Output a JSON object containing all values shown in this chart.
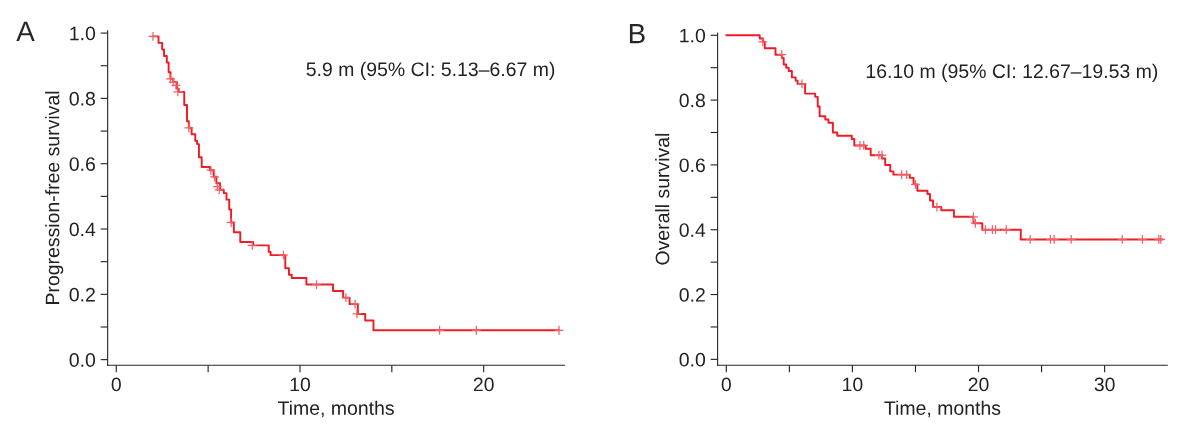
{
  "chart_data": [
    {
      "type": "step",
      "title": "A",
      "xlabel": "Time, months",
      "ylabel": "Progression-free survival",
      "annotations": [
        "5.9 m (95% CI: 5.13–6.67 m)"
      ],
      "xlim": [
        -0.47,
        24.4
      ],
      "xticks": [
        0,
        {
          "value": 5,
          "label": null
        },
        10,
        {
          "value": 15,
          "label": null
        },
        20
      ],
      "ylim": [
        -0.017,
        1.007
      ],
      "yticks": [
        {
          "value": 0,
          "label": "0.0"
        },
        {
          "value": 0.1,
          "label": null
        },
        {
          "value": 0.2,
          "label": "0.2"
        },
        {
          "value": 0.3,
          "label": null
        },
        {
          "value": 0.4,
          "label": "0.4"
        },
        {
          "value": 0.5,
          "label": null
        },
        {
          "value": 0.6,
          "label": "0.6"
        },
        {
          "value": 0.7,
          "label": null
        },
        {
          "value": 0.8,
          "label": "0.8"
        },
        {
          "value": 0.9,
          "label": null
        },
        {
          "value": 1,
          "label": "1.0"
        }
      ],
      "series": [
        {
          "color": "#ee1c25",
          "x": [
            2.0,
            2.3,
            2.5,
            2.6,
            2.75,
            2.85,
            2.95,
            3.1,
            3.3,
            3.4,
            3.7,
            3.85,
            3.95,
            4.1,
            4.3,
            4.4,
            4.5,
            4.65,
            5.1,
            5.3,
            5.45,
            5.65,
            5.85,
            6.0,
            6.15,
            6.25,
            6.4,
            6.75,
            7.45,
            8.3,
            8.4,
            9.2,
            9.4,
            9.55,
            10.35,
            11.8,
            12.35,
            12.7,
            13.15,
            13.55,
            14.0,
            24.1
          ],
          "values": [
            0.99,
            0.97,
            0.95,
            0.93,
            0.91,
            0.88,
            0.86,
            0.85,
            0.83,
            0.82,
            0.78,
            0.73,
            0.71,
            0.69,
            0.67,
            0.66,
            0.62,
            0.59,
            0.58,
            0.56,
            0.54,
            0.52,
            0.51,
            0.49,
            0.46,
            0.42,
            0.39,
            0.36,
            0.35,
            0.33,
            0.32,
            0.28,
            0.26,
            0.25,
            0.23,
            0.21,
            0.19,
            0.17,
            0.14,
            0.12,
            0.09,
            0.09
          ]
        },
        {
          "type": "scatter",
          "marker": "cross",
          "color": "#f06068",
          "x": [
            2.0,
            2.95,
            3.1,
            3.25,
            3.35,
            3.95,
            5.15,
            5.35,
            5.5,
            5.6,
            6.25,
            7.4,
            9.1,
            10.9,
            12.5,
            13.0,
            13.1,
            17.6,
            19.6,
            24.1
          ],
          "values": [
            0.99,
            0.86,
            0.85,
            0.84,
            0.82,
            0.71,
            0.58,
            0.56,
            0.53,
            0.52,
            0.42,
            0.35,
            0.32,
            0.23,
            0.19,
            0.17,
            0.14,
            0.09,
            0.09,
            0.09
          ]
        }
      ]
    },
    {
      "type": "step",
      "title": "B",
      "xlabel": "Time, months",
      "ylabel": "Overall survival",
      "annotations": [
        "16.10 m (95% CI: 12.67–19.53 m)"
      ],
      "xlim": [
        -0.69,
        34.97
      ],
      "xticks": [
        0,
        {
          "value": 5,
          "label": null
        },
        10,
        {
          "value": 15,
          "label": null
        },
        20,
        {
          "value": 25,
          "label": null
        },
        30
      ],
      "ylim": [
        -0.018,
        1.007
      ],
      "yticks": [
        {
          "value": 0,
          "label": "0.0"
        },
        {
          "value": 0.1,
          "label": null
        },
        {
          "value": 0.2,
          "label": "0.2"
        },
        {
          "value": 0.3,
          "label": null
        },
        {
          "value": 0.4,
          "label": "0.4"
        },
        {
          "value": 0.5,
          "label": null
        },
        {
          "value": 0.6,
          "label": "0.6"
        },
        {
          "value": 0.7,
          "label": null
        },
        {
          "value": 0.8,
          "label": "0.8"
        },
        {
          "value": 0.9,
          "label": null
        },
        {
          "value": 1,
          "label": "1.0"
        }
      ],
      "series": [
        {
          "color": "#ee1c25",
          "x": [
            0,
            2.65,
            2.9,
            3.05,
            3.9,
            4.4,
            4.55,
            4.75,
            4.95,
            5.2,
            5.5,
            5.65,
            6.25,
            7.05,
            7.25,
            7.4,
            7.85,
            8.1,
            8.45,
            8.8,
            9.95,
            10.15,
            11.05,
            11.45,
            12.35,
            12.6,
            13.0,
            13.25,
            14.55,
            14.85,
            15.15,
            15.95,
            16.15,
            16.4,
            17.05,
            18.05,
            19.6,
            20.3,
            23.35,
            34.6
          ],
          "values": [
            1.0,
            0.99,
            0.98,
            0.96,
            0.94,
            0.93,
            0.91,
            0.9,
            0.89,
            0.87,
            0.86,
            0.85,
            0.82,
            0.81,
            0.78,
            0.75,
            0.74,
            0.73,
            0.7,
            0.69,
            0.68,
            0.66,
            0.65,
            0.63,
            0.62,
            0.6,
            0.58,
            0.57,
            0.56,
            0.54,
            0.52,
            0.51,
            0.49,
            0.47,
            0.46,
            0.44,
            0.42,
            0.4,
            0.37,
            0.37
          ]
        },
        {
          "type": "scatter",
          "marker": "cross",
          "color": "#f06068",
          "x": [
            2.9,
            4.4,
            6.0,
            10.6,
            10.9,
            12.1,
            12.35,
            13.9,
            14.3,
            15.0,
            16.7,
            19.6,
            19.75,
            20.55,
            21.1,
            21.35,
            22.2,
            24.1,
            25.7,
            26.0,
            27.35,
            31.4,
            33.0,
            34.3,
            34.45
          ],
          "values": [
            0.98,
            0.94,
            0.85,
            0.66,
            0.66,
            0.63,
            0.63,
            0.57,
            0.57,
            0.54,
            0.47,
            0.44,
            0.42,
            0.4,
            0.4,
            0.4,
            0.4,
            0.37,
            0.37,
            0.37,
            0.37,
            0.37,
            0.37,
            0.37,
            0.37
          ]
        }
      ]
    }
  ]
}
